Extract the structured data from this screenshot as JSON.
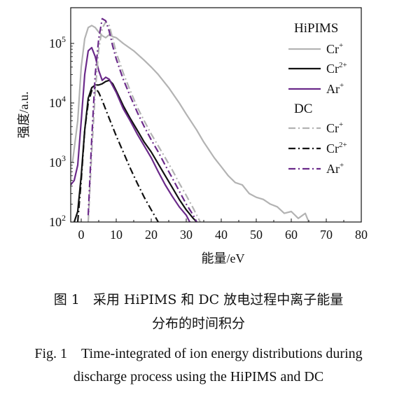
{
  "chart_data": {
    "type": "line",
    "xlabel": "能量/eV",
    "ylabel": "强度/a.u.",
    "xlim": [
      -3,
      80
    ],
    "ylim_log10": [
      2,
      5.6
    ],
    "y_scale": "log",
    "x_ticks": [
      0,
      10,
      20,
      30,
      40,
      50,
      60,
      70,
      80
    ],
    "y_ticks": [
      {
        "exp": 2,
        "label_base": "10",
        "label_exp": "2"
      },
      {
        "exp": 3,
        "label_base": "10",
        "label_exp": "3"
      },
      {
        "exp": 4,
        "label_base": "10",
        "label_exp": "4"
      },
      {
        "exp": 5,
        "label_base": "10",
        "label_exp": "5"
      }
    ],
    "legend": {
      "placement": "top-right",
      "groups": [
        {
          "title": "HiPIMS",
          "entries": [
            {
              "base": "Cr",
              "sup": "+",
              "series": 0
            },
            {
              "base": "Cr",
              "sup": "2+",
              "series": 1
            },
            {
              "base": "Ar",
              "sup": "+",
              "series": 2
            }
          ]
        },
        {
          "title": "DC",
          "entries": [
            {
              "base": "Cr",
              "sup": "+",
              "series": 3
            },
            {
              "base": "Cr",
              "sup": "2+",
              "series": 4
            },
            {
              "base": "Ar",
              "sup": "+",
              "series": 5
            }
          ]
        }
      ]
    },
    "series": [
      {
        "name": "HiPIMS Cr+",
        "color": "#b3b3b3",
        "dash": "solid",
        "width": 2.2,
        "points": [
          [
            -2.5,
            1000
          ],
          [
            -1,
            5000
          ],
          [
            0,
            40000
          ],
          [
            1,
            120000
          ],
          [
            2,
            185000
          ],
          [
            3,
            200000
          ],
          [
            4,
            185000
          ],
          [
            5,
            155000
          ],
          [
            6,
            135000
          ],
          [
            7,
            125000
          ],
          [
            8,
            140000
          ],
          [
            9,
            130000
          ],
          [
            10,
            125000
          ],
          [
            12,
            100000
          ],
          [
            15,
            75000
          ],
          [
            18,
            52000
          ],
          [
            20,
            40000
          ],
          [
            22,
            30000
          ],
          [
            25,
            18000
          ],
          [
            28,
            10000
          ],
          [
            30,
            6500
          ],
          [
            33,
            3500
          ],
          [
            35,
            2200
          ],
          [
            38,
            1200
          ],
          [
            40,
            850
          ],
          [
            42,
            600
          ],
          [
            44,
            460
          ],
          [
            46,
            420
          ],
          [
            48,
            300
          ],
          [
            50,
            260
          ],
          [
            52,
            240
          ],
          [
            54,
            200
          ],
          [
            56,
            180
          ],
          [
            58,
            140
          ],
          [
            60,
            150
          ],
          [
            62,
            115
          ],
          [
            64,
            140
          ],
          [
            65,
            100
          ]
        ]
      },
      {
        "name": "HiPIMS Cr2+",
        "color": "#111111",
        "dash": "solid",
        "width": 2.2,
        "points": [
          [
            -2,
            100
          ],
          [
            -1,
            150
          ],
          [
            0,
            600
          ],
          [
            1,
            3500
          ],
          [
            2,
            12000
          ],
          [
            3,
            18000
          ],
          [
            4,
            20000
          ],
          [
            5,
            20000
          ],
          [
            6,
            21000
          ],
          [
            7,
            23000
          ],
          [
            8,
            24000
          ],
          [
            9,
            21000
          ],
          [
            10,
            16000
          ],
          [
            12,
            9000
          ],
          [
            14,
            5500
          ],
          [
            16,
            3500
          ],
          [
            18,
            2200
          ],
          [
            20,
            1500
          ],
          [
            22,
            950
          ],
          [
            24,
            600
          ],
          [
            26,
            380
          ],
          [
            28,
            240
          ],
          [
            30,
            160
          ],
          [
            32,
            115
          ],
          [
            33,
            100
          ]
        ]
      },
      {
        "name": "HiPIMS Ar+",
        "color": "#6b2a8a",
        "dash": "solid",
        "width": 2.2,
        "points": [
          [
            -3,
            420
          ],
          [
            -2,
            500
          ],
          [
            -1,
            900
          ],
          [
            0,
            5000
          ],
          [
            1,
            30000
          ],
          [
            2,
            75000
          ],
          [
            3,
            85000
          ],
          [
            4,
            60000
          ],
          [
            5,
            35000
          ],
          [
            6,
            24000
          ],
          [
            7,
            27000
          ],
          [
            8,
            25000
          ],
          [
            10,
            15000
          ],
          [
            12,
            8000
          ],
          [
            14,
            5000
          ],
          [
            16,
            3000
          ],
          [
            18,
            1900
          ],
          [
            20,
            1200
          ],
          [
            22,
            700
          ],
          [
            24,
            420
          ],
          [
            26,
            270
          ],
          [
            28,
            180
          ],
          [
            30,
            130
          ],
          [
            31,
            100
          ]
        ]
      },
      {
        "name": "DC Cr+",
        "color": "#b3b3b3",
        "dash": "10,4,2,4",
        "width": 2.2,
        "points": [
          [
            2,
            100
          ],
          [
            3,
            1500
          ],
          [
            4,
            15000
          ],
          [
            5,
            80000
          ],
          [
            6,
            180000
          ],
          [
            7,
            230000
          ],
          [
            8,
            200000
          ],
          [
            9,
            120000
          ],
          [
            10,
            70000
          ],
          [
            12,
            32000
          ],
          [
            14,
            16000
          ],
          [
            16,
            8500
          ],
          [
            18,
            5000
          ],
          [
            20,
            3000
          ],
          [
            22,
            1900
          ],
          [
            24,
            1200
          ],
          [
            26,
            750
          ],
          [
            28,
            450
          ],
          [
            30,
            280
          ],
          [
            32,
            170
          ],
          [
            34,
            100
          ]
        ]
      },
      {
        "name": "DC Cr2+",
        "color": "#111111",
        "dash": "10,4,2,4",
        "width": 2.2,
        "points": [
          [
            -1,
            100
          ],
          [
            0,
            500
          ],
          [
            1,
            3500
          ],
          [
            2,
            10000
          ],
          [
            3,
            16000
          ],
          [
            4,
            18000
          ],
          [
            5,
            15000
          ],
          [
            6,
            11000
          ],
          [
            8,
            5500
          ],
          [
            10,
            2800
          ],
          [
            12,
            1500
          ],
          [
            14,
            800
          ],
          [
            16,
            450
          ],
          [
            18,
            260
          ],
          [
            20,
            160
          ],
          [
            22,
            100
          ]
        ]
      },
      {
        "name": "DC Ar+",
        "color": "#6b2a8a",
        "dash": "10,4,2,4",
        "width": 2.2,
        "points": [
          [
            2,
            130
          ],
          [
            3,
            2500
          ],
          [
            4,
            30000
          ],
          [
            5,
            120000
          ],
          [
            6,
            260000
          ],
          [
            7,
            240000
          ],
          [
            8,
            160000
          ],
          [
            9,
            90000
          ],
          [
            10,
            55000
          ],
          [
            12,
            25000
          ],
          [
            14,
            13000
          ],
          [
            16,
            7000
          ],
          [
            18,
            4000
          ],
          [
            20,
            2400
          ],
          [
            22,
            1500
          ],
          [
            24,
            900
          ],
          [
            26,
            550
          ],
          [
            28,
            330
          ],
          [
            30,
            200
          ],
          [
            32,
            130
          ],
          [
            33,
            100
          ]
        ]
      }
    ]
  },
  "caption": {
    "cn_line1": "图 1　采用 HiPIMS 和 DC 放电过程中离子能量",
    "cn_line2": "分布的时间积分",
    "en_line1": "Fig. 1　Time-integrated of ion energy distributions during",
    "en_line2": "discharge process using the HiPIMS and DC"
  }
}
